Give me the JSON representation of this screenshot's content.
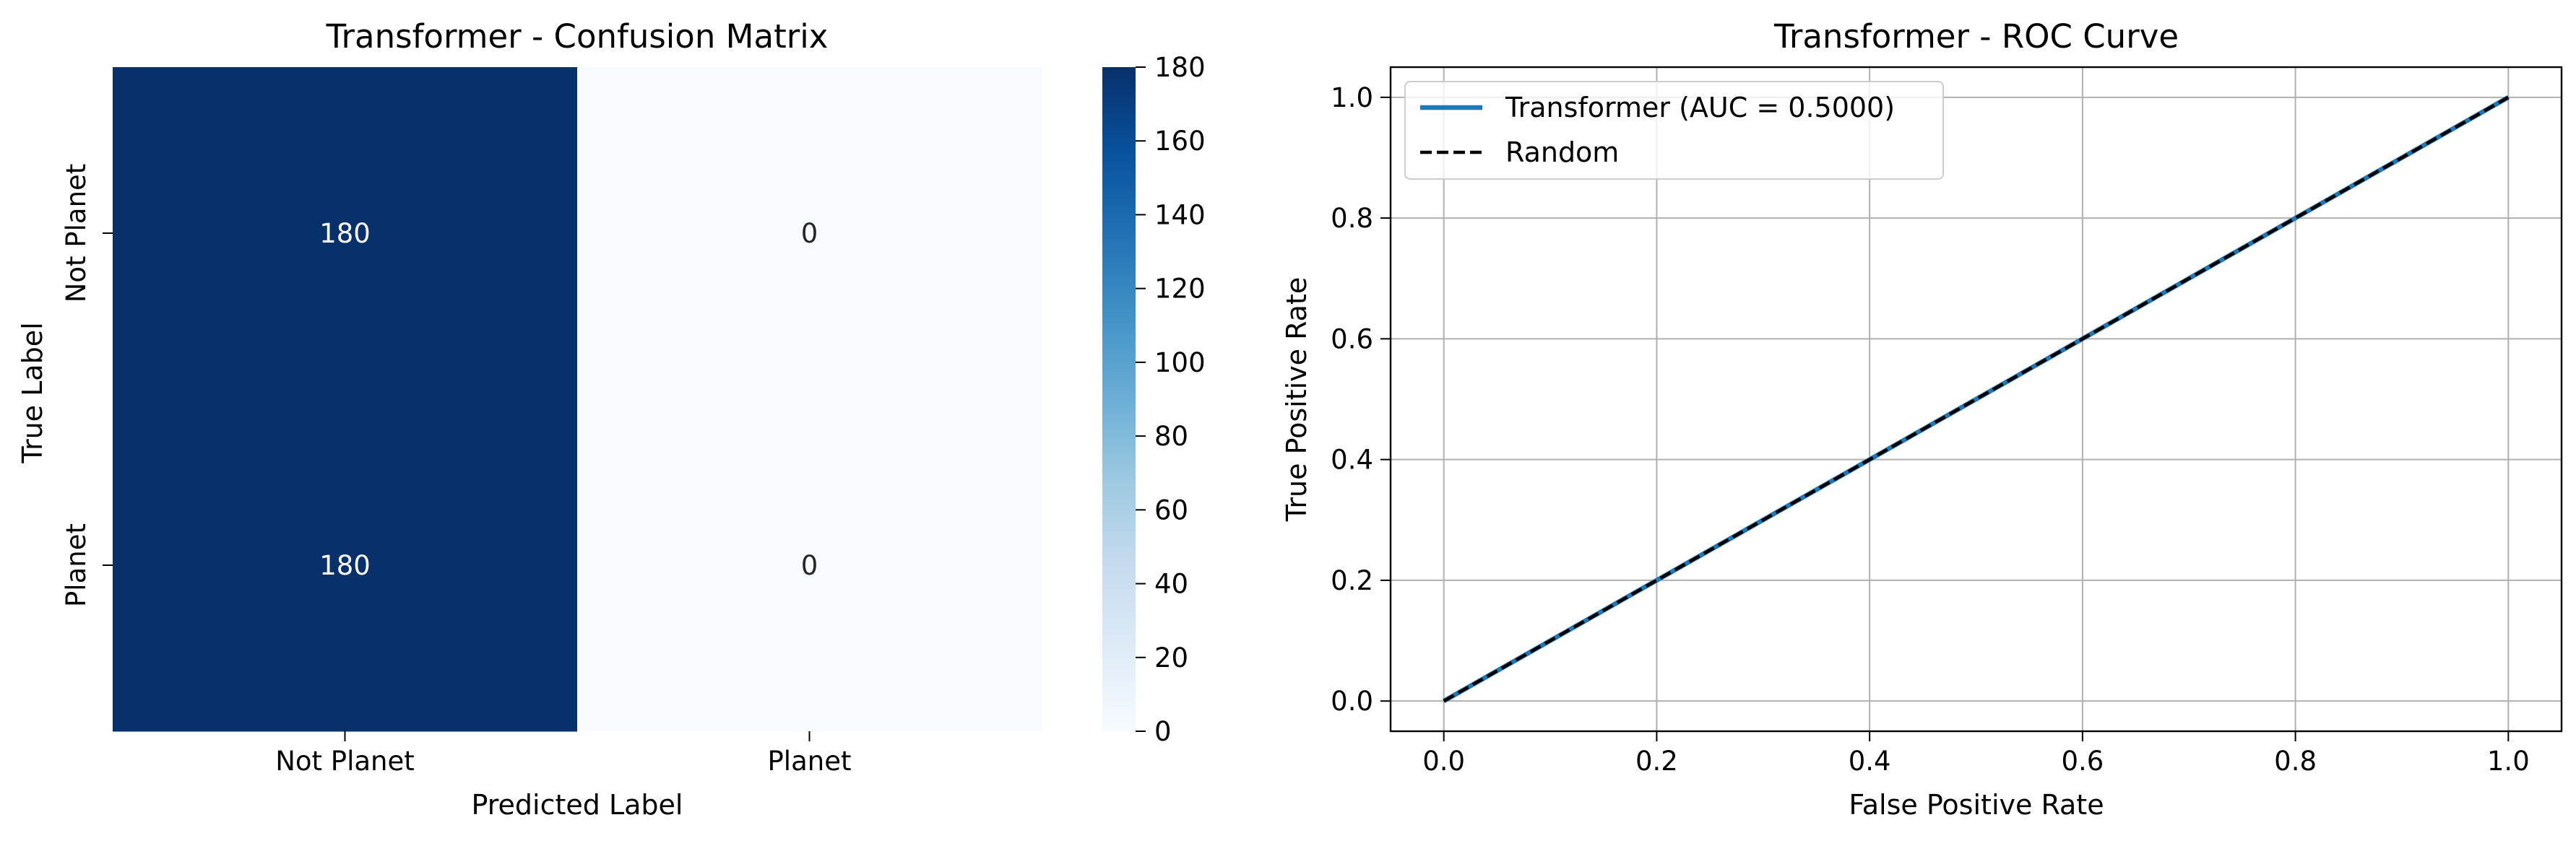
{
  "chart_data": [
    {
      "type": "heatmap",
      "title": "Transformer - Confusion Matrix",
      "xlabel": "Predicted Label",
      "ylabel": "True Label",
      "x_categories": [
        "Not Planet",
        "Planet"
      ],
      "y_categories": [
        "Not Planet",
        "Planet"
      ],
      "values": [
        [
          180,
          0
        ],
        [
          180,
          0
        ]
      ],
      "colormap": "Blues",
      "colorbar": {
        "min": 0,
        "max": 180,
        "ticks": [
          "0",
          "20",
          "40",
          "60",
          "80",
          "100",
          "120",
          "140",
          "160",
          "180"
        ]
      },
      "colors": {
        "low": "#f7fbff",
        "high": "#08306b",
        "cell_text_dark_bg": "#ffffff",
        "cell_text_light_bg": "#262626"
      }
    },
    {
      "type": "line",
      "title": "Transformer - ROC Curve",
      "xlabel": "False Positive Rate",
      "ylabel": "True Positive Rate",
      "xlim": [
        -0.05,
        1.05
      ],
      "ylim": [
        -0.05,
        1.05
      ],
      "xticks": [
        "0.0",
        "0.2",
        "0.4",
        "0.6",
        "0.8",
        "1.0"
      ],
      "yticks": [
        "0.0",
        "0.2",
        "0.4",
        "0.6",
        "0.8",
        "1.0"
      ],
      "grid": true,
      "legend_position": "top-left",
      "series": [
        {
          "name": "Transformer (AUC = 0.5000)",
          "x": [
            0.0,
            1.0
          ],
          "y": [
            0.0,
            1.0
          ],
          "color": "#1f77b4",
          "style": "solid"
        },
        {
          "name": "Random",
          "x": [
            0.0,
            1.0
          ],
          "y": [
            0.0,
            1.0
          ],
          "color": "#000000",
          "style": "dashed"
        }
      ]
    }
  ]
}
